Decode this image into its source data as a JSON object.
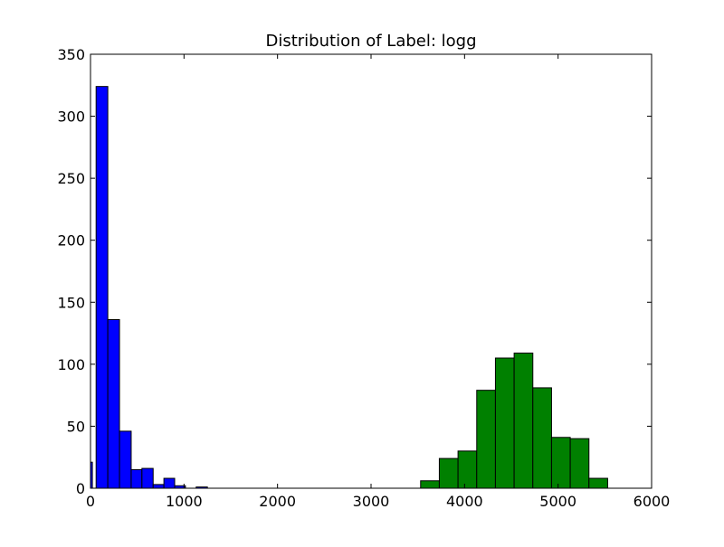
{
  "chart_data": {
    "type": "bar",
    "title": "Distribution of Label: logg",
    "xlabel": "",
    "ylabel": "",
    "xlim": [
      0,
      6000
    ],
    "ylim": [
      0,
      350
    ],
    "xticks": [
      "0",
      "1000",
      "2000",
      "3000",
      "4000",
      "5000",
      "6000"
    ],
    "yticks": [
      "0",
      "50",
      "100",
      "150",
      "200",
      "250",
      "300",
      "350"
    ],
    "grid": false,
    "series": [
      {
        "color": "#0000ff",
        "bins": [
          {
            "x0": 0,
            "x1": 20,
            "value": 21
          },
          {
            "x0": 60,
            "x1": 185,
            "value": 324
          },
          {
            "x0": 185,
            "x1": 310,
            "value": 136
          },
          {
            "x0": 310,
            "x1": 435,
            "value": 46
          },
          {
            "x0": 435,
            "x1": 550,
            "value": 15
          },
          {
            "x0": 550,
            "x1": 670,
            "value": 16
          },
          {
            "x0": 670,
            "x1": 785,
            "value": 3
          },
          {
            "x0": 785,
            "x1": 900,
            "value": 8
          },
          {
            "x0": 900,
            "x1": 1015,
            "value": 2
          },
          {
            "x0": 1015,
            "x1": 1130,
            "value": 0
          },
          {
            "x0": 1130,
            "x1": 1250,
            "value": 1
          }
        ]
      },
      {
        "color": "#008000",
        "bins": [
          {
            "x0": 3530,
            "x1": 3730,
            "value": 6
          },
          {
            "x0": 3730,
            "x1": 3930,
            "value": 24
          },
          {
            "x0": 3930,
            "x1": 4130,
            "value": 30
          },
          {
            "x0": 4130,
            "x1": 4330,
            "value": 79
          },
          {
            "x0": 4330,
            "x1": 4530,
            "value": 105
          },
          {
            "x0": 4530,
            "x1": 4730,
            "value": 109
          },
          {
            "x0": 4730,
            "x1": 4930,
            "value": 81
          },
          {
            "x0": 4930,
            "x1": 5130,
            "value": 41
          },
          {
            "x0": 5130,
            "x1": 5330,
            "value": 40
          },
          {
            "x0": 5330,
            "x1": 5530,
            "value": 8
          }
        ]
      }
    ]
  }
}
